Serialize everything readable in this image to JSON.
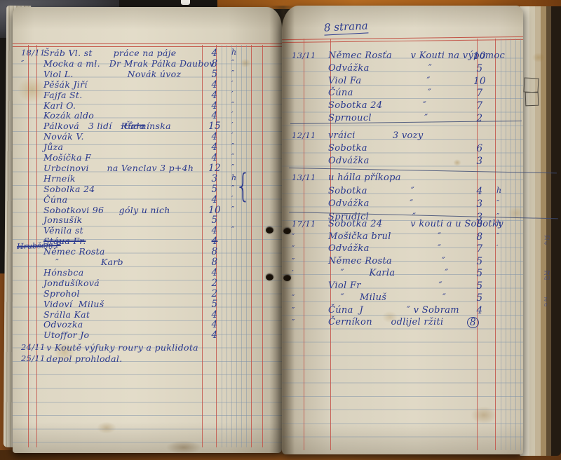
{
  "right_page_header": "8 strana",
  "left_page": {
    "margin_note_struck": "Hrubšom F",
    "rows": [
      {
        "d": "18/11",
        "t": "Šráb Vl. st       práce na páje",
        "a": "4",
        "u": "h"
      },
      {
        "d": "″",
        "t": "Mocka a ml.   Dr Mrak Pálka Daubov",
        "a": "8",
        "u": "″"
      },
      {
        "t": "Viol L.                  Novák úvoz",
        "a": "5",
        "u": "″"
      },
      {
        "t": "Pěšák Jiří",
        "a": "4",
        "u": "′"
      },
      {
        "t": "Fajfa St.",
        "a": "4",
        "u": "′"
      },
      {
        "t": "Karl O.",
        "a": "4",
        "u": "″"
      },
      {
        "t": "Kozák aldo",
        "a": "4",
        "u": "′"
      },
      {
        "t": "Pálková   3 lidí   ",
        "ts": "Růda",
        "t2": " Černínska",
        "a": "15",
        "u": "′"
      },
      {
        "t": "Novák V.",
        "a": "4",
        "u": "′"
      },
      {
        "t": "Jůza",
        "a": "4",
        "u": "″"
      },
      {
        "t": "Mošíčka F",
        "a": "4",
        "u": "″"
      },
      {
        "t": "Urbcinovi      na Venclav 3 p+4h",
        "a": "12",
        "u": "″"
      },
      {
        "t": "Hrneík",
        "a": "3",
        "u": "h"
      },
      {
        "t": "Sobolka 24",
        "a": "5",
        "u": "″"
      },
      {
        "t": "Čúna",
        "a": "4",
        "u": "′"
      },
      {
        "t": "Sobotkovi 96     góly u nich",
        "a": "10",
        "u": "″"
      },
      {
        "t": "Jonsušík",
        "a": "5"
      },
      {
        "t": "Věnila st",
        "a": "4",
        "u": "″"
      },
      {
        "t": "Stáua Fr.",
        "a": "4",
        "struck": 1
      },
      {
        "t": "Němec Rosta",
        "a": "8"
      },
      {
        "t": "    ″              Karb",
        "a": "8"
      },
      {
        "t": "Hónsbca",
        "a": "4"
      },
      {
        "t": "Jondušíková",
        "a": "2"
      },
      {
        "t": "Sprohol",
        "a": "2"
      },
      {
        "t": "Vidoví  Miluš",
        "a": "5"
      },
      {
        "t": "Srálla Kat",
        "a": "4"
      },
      {
        "t": "Odvozka",
        "a": "4"
      },
      {
        "t": "Utoffor Jo",
        "a": "4"
      }
    ],
    "footer_rows": [
      {
        "d": "24/11",
        "t": " v Koutě výfuky roury a puklidota"
      },
      {
        "d": "25/11",
        "t": " depol prohlodal."
      }
    ]
  },
  "right_page": {
    "blocks": [
      {
        "rows": [
          {
            "d": "13/11",
            "t": "Němec Rosťa      v Kouti na výpomoc",
            "a": "10"
          },
          {
            "t": "Odvážka                   ″",
            "a": "5"
          },
          {
            "t": "Viol Fa                     ″",
            "a": "10"
          },
          {
            "t": "Čúna                        ″",
            "a": "7"
          },
          {
            "t": "Sobotka 24             ″",
            "a": "7"
          },
          {
            "t": "Sprnoucl                 ″",
            "a": "2"
          }
        ]
      },
      {
        "rows": [
          {
            "d": "12/11",
            "t": "vráici            3 vozy"
          },
          {
            "t": "Sobotka",
            "a": "6"
          },
          {
            "t": "Odvážka",
            "a": "3"
          }
        ]
      },
      {
        "rows": [
          {
            "d": "13/11",
            "t": "u hálla příkopa"
          },
          {
            "t": "Sobotka              ″",
            "a": "4",
            "u": "h"
          },
          {
            "t": "Odvážka             ″",
            "a": "3",
            "u": "″"
          },
          {
            "t": "Sprudicl              ″",
            "a": "3",
            "u": "″"
          }
        ]
      },
      {
        "rows": [
          {
            "d": "17/11",
            "t": "Sobotka 24         v kouti a u Sobotky",
            "a": "8",
            "u": "h"
          },
          {
            "d": "″",
            "t": "Mošička brul               ″",
            "a": "8",
            "u": "″"
          },
          {
            "d": "″",
            "t": "Odvážka                      ″",
            "a": "7",
            "u": "′"
          },
          {
            "d": "″",
            "t": "Němec Rosta                ″",
            "a": "5"
          },
          {
            "d": "′",
            "t": "    ″        Karla                ″",
            "a": "5"
          },
          {
            "t": "Viol Fr                         ″",
            "a": "5"
          },
          {
            "d": "″",
            "t": "    ″     Miluš                  ″",
            "a": "5"
          },
          {
            "d": "″",
            "t": "Čúna  J              ″ v Sobram",
            "a": "4"
          },
          {
            "d": "″",
            "t": "Černíkon      odlijel ržiti",
            "a": "8",
            "c": 1
          }
        ]
      }
    ]
  },
  "edge_marks": [
    "12\n4",
    "24\n83",
    "4\n0"
  ],
  "colors": {
    "ink": "#2b3a8e",
    "rule_red": "#c4544a",
    "rule_blue": "#7d91a8",
    "paper": "#ddd6c3"
  }
}
